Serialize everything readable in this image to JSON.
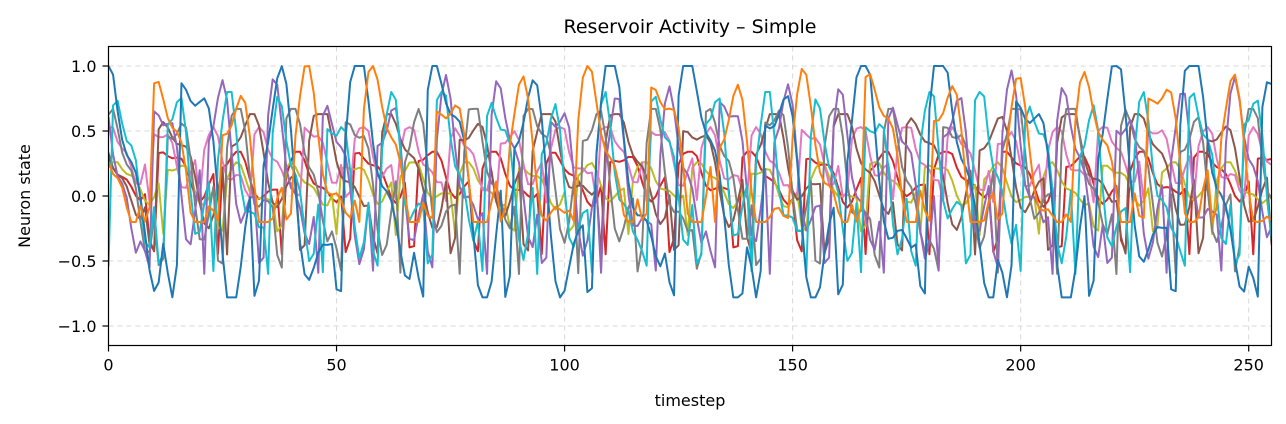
{
  "chart_data": {
    "type": "line",
    "title": "Reservoir Activity – Simple",
    "xlabel": "timestep",
    "ylabel": "Neuron state",
    "xlim": [
      0,
      255
    ],
    "ylim": [
      -1.15,
      1.15
    ],
    "xticks": [
      0,
      50,
      100,
      150,
      200,
      250
    ],
    "xtick_labels": [
      "0",
      "50",
      "100",
      "150",
      "200",
      "250"
    ],
    "yticks": [
      1.0,
      0.5,
      0.0,
      -0.5,
      -1.0
    ],
    "ytick_labels": [
      "1.0",
      "0.5",
      "0.0",
      "−0.5",
      "−1.0"
    ],
    "grid": true,
    "legend": "none",
    "series_generator": {
      "length": 256,
      "series": [
        {
          "color": "#d62728",
          "period": 14.2,
          "phase": 2.0,
          "amp": 0.17,
          "offset": 0.16,
          "min": -0.45,
          "max": 0.34
        },
        {
          "color": "#bcbd22",
          "period": 12.8,
          "phase": 0.5,
          "amp": 0.14,
          "offset": 0.1,
          "min": -0.3,
          "max": 0.26
        },
        {
          "color": "#e377c2",
          "period": 10.9,
          "phase": 1.2,
          "amp": 0.2,
          "offset": 0.32,
          "min": -0.05,
          "max": 0.53
        },
        {
          "color": "#8c564b",
          "period": 16.4,
          "phase": 2.6,
          "amp": 0.35,
          "offset": 0.26,
          "min": -0.45,
          "max": 0.63
        },
        {
          "color": "#7f7f7f",
          "period": 13.1,
          "phase": 0.8,
          "amp": 0.45,
          "offset": 0.2,
          "min": -0.6,
          "max": 0.67
        },
        {
          "color": "#9467bd",
          "period": 12.4,
          "phase": 1.9,
          "amp": 0.5,
          "offset": 0.22,
          "min": -0.6,
          "max": 1.0
        },
        {
          "color": "#17becf",
          "period": 11.8,
          "phase": 0.2,
          "amp": 0.5,
          "offset": 0.2,
          "min": -0.6,
          "max": 0.8
        },
        {
          "color": "#1f77b4",
          "period": 18.3,
          "phase": 1.5,
          "amp": 0.78,
          "offset": 0.15,
          "min": -0.78,
          "max": 1.0
        },
        {
          "color": "#ff7f0e",
          "period": 15.6,
          "phase": 3.0,
          "amp": 0.55,
          "offset": 0.28,
          "min": -0.2,
          "max": 1.0
        }
      ]
    }
  }
}
